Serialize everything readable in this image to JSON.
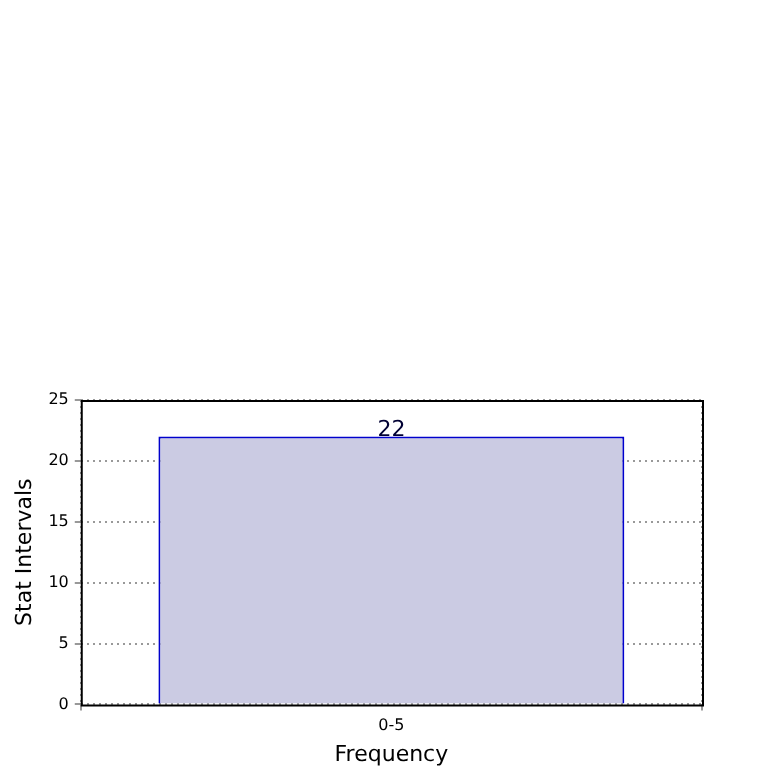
{
  "chart_data": {
    "type": "bar",
    "xlabel": "Frequency",
    "ylabel": "Stat Intervals",
    "categories": [
      "0-5"
    ],
    "values": [
      22
    ],
    "color": "#cbcbe3",
    "ylim": [
      0,
      25
    ],
    "yticks": [
      0,
      5,
      10,
      15,
      20,
      25
    ],
    "grid": true,
    "data_labels": true,
    "legend": false
  }
}
